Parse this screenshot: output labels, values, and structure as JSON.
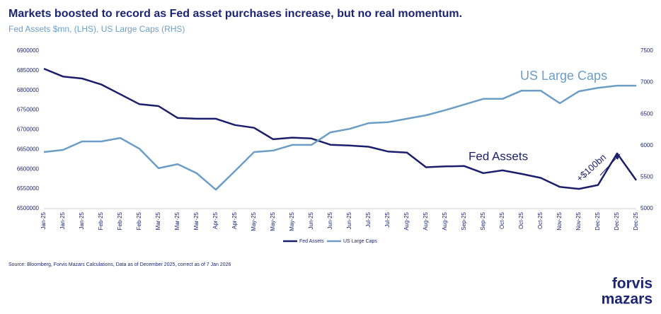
{
  "chart_data": {
    "type": "line",
    "title": "Markets boosted to record as Fed asset purchases increase, but no real momentum.",
    "subtitle": "Fed Assets $mn, (LHS), US Large Caps (RHS)",
    "categories": [
      "Jan-25",
      "Jan-25",
      "Jan-25",
      "Feb-25",
      "Feb-25",
      "Feb-25",
      "Mar-25",
      "Mar-25",
      "Mar-25",
      "Apr-25",
      "Apr-25",
      "May-25",
      "May-25",
      "May-25",
      "Jun-25",
      "Jun-25",
      "Jun-25",
      "Jul-25",
      "Jul-25",
      "Aug-25",
      "Aug-25",
      "Aug-25",
      "Sep-25",
      "Sep-25",
      "Oct-25",
      "Oct-25",
      "Oct-25",
      "Nov-25",
      "Nov-25",
      "Dec-25",
      "Dec-25",
      "Dec-25"
    ],
    "series": [
      {
        "name": "Fed Assets",
        "color": "#1b1f6b",
        "values": [
          6855000,
          6835000,
          6830000,
          6815000,
          6790000,
          6765000,
          6760000,
          6730000,
          6728000,
          6728000,
          6712000,
          6705000,
          6676000,
          6680000,
          6678000,
          6662000,
          6660000,
          6657000,
          6645000,
          6642000,
          6605000,
          6607000,
          6608000,
          6590000,
          6597000,
          6588000,
          6578000,
          6555000,
          6550000,
          6560000,
          6640000,
          6572000
        ]
      },
      {
        "name": "US Large Caps",
        "color": "#6b9dc6",
        "axis": "y2",
        "values": [
          5897,
          5930,
          6065,
          6065,
          6120,
          5950,
          5640,
          5705,
          5560,
          5300,
          5595,
          5897,
          5920,
          6010,
          6010,
          6210,
          6265,
          6355,
          6370,
          6425,
          6480,
          6560,
          6650,
          6740,
          6740,
          6870,
          6870,
          6670,
          6860,
          6915,
          6950,
          6950
        ]
      }
    ],
    "ylim": [
      6500000,
      6900000
    ],
    "yticks": [
      6500000,
      6550000,
      6600000,
      6650000,
      6700000,
      6750000,
      6800000,
      6850000,
      6900000
    ],
    "y2lim": [
      5000,
      7500
    ],
    "y2ticks": [
      5000,
      5500,
      6000,
      6500,
      7000,
      7500
    ],
    "annotations": [
      "US Large Caps",
      "Fed Assets",
      "+$100bn"
    ],
    "legend": "bottom",
    "source": "Source: Bloomberg, Forvis Mazars Calculations, Data  as of December 2025, correct as of 7 Jan 2026",
    "logo": [
      "forvis",
      "mazars"
    ]
  }
}
